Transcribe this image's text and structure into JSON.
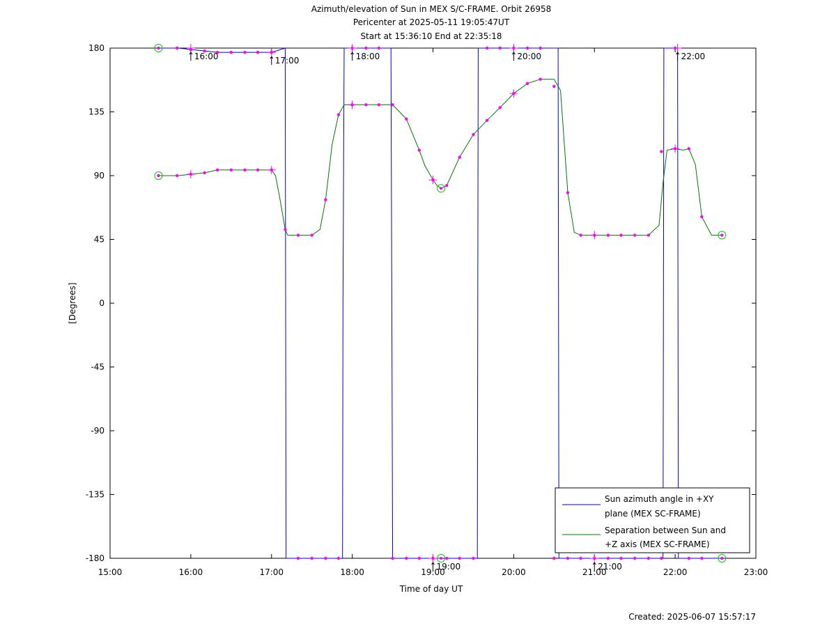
{
  "chart_data": {
    "type": "line",
    "title_lines": [
      "Azimuth/elevation of Sun in MEX S/C-FRAME.  Orbit 26958",
      "Pericenter at 2025-05-11 19:05:47UT",
      "Start at 15:36:10 End at 22:35:18"
    ],
    "xlabel": "Time of day UT",
    "ylabel": "[Degrees]",
    "xlim": [
      15,
      23
    ],
    "ylim": [
      -180,
      180
    ],
    "x_ticks": [
      15,
      16,
      17,
      18,
      19,
      20,
      21,
      22,
      23
    ],
    "x_tick_labels": [
      "15:00",
      "16:00",
      "17:00",
      "18:00",
      "19:00",
      "20:00",
      "21:00",
      "22:00",
      "23:00"
    ],
    "y_ticks": [
      180,
      135,
      90,
      45,
      0,
      -45,
      -90,
      -135,
      -180
    ],
    "y_tick_labels": [
      "180",
      "135",
      "90",
      "45",
      "0",
      "-45",
      "-90",
      "-135",
      "-180"
    ],
    "hour_annotations": [
      {
        "label": "16:00",
        "x": 16.0,
        "y": 180
      },
      {
        "label": "17:00",
        "x": 17.0,
        "y": 177
      },
      {
        "label": "18:00",
        "x": 18.0,
        "y": 180
      },
      {
        "label": "19:00",
        "x": 19.0,
        "y": -180
      },
      {
        "label": "20:00",
        "x": 20.0,
        "y": 180
      },
      {
        "label": "21:00",
        "x": 21.0,
        "y": -180
      },
      {
        "label": "22:00",
        "x": 22.03,
        "y": 180
      }
    ],
    "series": [
      {
        "name": "Sun azimuth angle in +XY plane (MEX SC-FRAME)",
        "color": "#0000cc",
        "x": [
          15.6,
          15.85,
          16.0,
          16.17,
          16.33,
          16.5,
          16.67,
          16.83,
          17.0,
          17.17,
          17.175,
          17.18,
          17.2,
          17.35,
          17.5,
          17.67,
          17.85,
          17.88,
          17.885,
          17.9,
          18.0,
          18.17,
          18.33,
          18.48,
          18.49,
          18.5,
          18.52,
          18.67,
          18.83,
          19.0,
          19.1,
          19.17,
          19.33,
          19.55,
          19.555,
          19.56,
          19.58,
          19.67,
          19.83,
          20.0,
          20.17,
          20.33,
          20.55,
          20.555,
          20.56,
          20.58,
          20.67,
          20.83,
          21.0,
          21.17,
          21.33,
          21.5,
          21.67,
          21.85,
          21.855,
          21.86,
          21.88,
          21.9,
          22.0,
          22.03,
          22.035,
          22.04,
          22.06,
          22.17,
          22.33,
          22.58
        ],
        "y": [
          180,
          180,
          179,
          178,
          177,
          177,
          177,
          177,
          177,
          180,
          0,
          -180,
          -180,
          -180,
          -180,
          -180,
          -180,
          -180,
          0,
          180,
          180,
          180,
          180,
          180,
          0,
          -180,
          -180,
          -180,
          -180,
          -180,
          -180,
          -180,
          -180,
          -180,
          0,
          180,
          180,
          180,
          180,
          180,
          180,
          180,
          180,
          0,
          -180,
          -180,
          -180,
          -180,
          -180,
          -180,
          -180,
          -180,
          -180,
          -180,
          0,
          180,
          180,
          180,
          180,
          180,
          0,
          -180,
          -180,
          -180,
          -180,
          -180
        ]
      },
      {
        "name": "Separation between Sun and +Z axis (MEX SC-FRAME)",
        "color": "#007700",
        "x": [
          15.6,
          15.85,
          16.0,
          16.17,
          16.33,
          16.5,
          16.67,
          16.83,
          17.0,
          17.05,
          17.1,
          17.17,
          17.2,
          17.35,
          17.5,
          17.6,
          17.67,
          17.75,
          17.83,
          17.9,
          18.0,
          18.17,
          18.33,
          18.5,
          18.67,
          18.83,
          18.9,
          19.0,
          19.05,
          19.1,
          19.17,
          19.33,
          19.5,
          19.67,
          19.83,
          20.0,
          20.17,
          20.33,
          20.5,
          20.58,
          20.67,
          20.75,
          20.83,
          21.0,
          21.17,
          21.33,
          21.5,
          21.67,
          21.8,
          21.85,
          21.9,
          22.0,
          22.1,
          22.17,
          22.25,
          22.33,
          22.45,
          22.58
        ],
        "y": [
          90,
          90,
          91,
          92,
          94,
          94,
          94,
          94,
          94,
          90,
          75,
          52,
          48,
          48,
          48,
          52,
          73,
          112,
          133,
          140,
          140,
          140,
          140,
          140,
          130,
          108,
          97,
          87,
          83,
          81,
          83,
          103,
          119,
          129,
          138,
          148,
          155,
          158,
          158,
          150,
          78,
          50,
          48,
          48,
          48,
          48,
          48,
          48,
          55,
          85,
          108,
          109,
          108,
          109,
          98,
          61,
          48,
          48
        ]
      }
    ],
    "markers": {
      "pink_dots_azimuth": {
        "x": [
          15.6,
          15.83,
          16.0,
          16.17,
          16.33,
          16.5,
          16.67,
          16.83,
          17.0,
          17.33,
          17.5,
          17.67,
          17.83,
          18.0,
          18.17,
          18.33,
          18.5,
          18.67,
          18.83,
          19.0,
          19.17,
          19.33,
          19.5,
          19.67,
          19.83,
          20.0,
          20.17,
          20.33,
          20.5,
          20.67,
          20.83,
          21.0,
          21.17,
          21.33,
          21.5,
          21.67,
          21.83,
          22.0,
          22.17,
          22.33,
          22.58
        ],
        "y": [
          180,
          180,
          179,
          178,
          177,
          177,
          177,
          177,
          177,
          -180,
          -180,
          -180,
          -180,
          180,
          180,
          180,
          -180,
          -180,
          -180,
          -180,
          -180,
          -180,
          -180,
          180,
          180,
          180,
          180,
          180,
          -180,
          -180,
          -180,
          -180,
          -180,
          -180,
          -180,
          -180,
          -180,
          180,
          -180,
          -180,
          -180
        ]
      },
      "pink_dots_separation": {
        "x": [
          15.6,
          15.83,
          16.0,
          16.17,
          16.33,
          16.5,
          16.67,
          16.83,
          17.0,
          17.17,
          17.33,
          17.5,
          17.67,
          17.83,
          18.0,
          18.17,
          18.33,
          18.5,
          18.67,
          18.83,
          19.0,
          19.17,
          19.33,
          19.5,
          19.67,
          19.83,
          20.0,
          20.17,
          20.33,
          20.5,
          20.67,
          20.83,
          21.0,
          21.17,
          21.33,
          21.5,
          21.67,
          21.83,
          22.0,
          22.17,
          22.33,
          22.58
        ],
        "y": [
          90,
          90,
          91,
          92,
          94,
          94,
          94,
          94,
          94,
          52,
          48,
          48,
          73,
          133,
          140,
          140,
          140,
          140,
          130,
          108,
          87,
          83,
          103,
          119,
          129,
          138,
          148,
          155,
          158,
          153,
          78,
          48,
          48,
          48,
          48,
          48,
          48,
          107,
          109,
          109,
          61,
          48
        ]
      },
      "plus_markers": [
        {
          "x": 16.0,
          "y": 180
        },
        {
          "x": 17.0,
          "y": 177
        },
        {
          "x": 18.0,
          "y": 180
        },
        {
          "x": 20.0,
          "y": 180
        },
        {
          "x": 22.03,
          "y": 180
        },
        {
          "x": 16.0,
          "y": 91
        },
        {
          "x": 17.0,
          "y": 94
        },
        {
          "x": 18.0,
          "y": 140
        },
        {
          "x": 19.0,
          "y": 87
        },
        {
          "x": 20.0,
          "y": 148
        },
        {
          "x": 21.0,
          "y": 48
        },
        {
          "x": 22.0,
          "y": 109
        },
        {
          "x": 19.0,
          "y": -180
        },
        {
          "x": 21.0,
          "y": -180
        }
      ],
      "green_circles": [
        {
          "x": 15.6,
          "y": 180
        },
        {
          "x": 15.6,
          "y": 90
        },
        {
          "x": 19.1,
          "y": 81
        },
        {
          "x": 19.1,
          "y": -180
        },
        {
          "x": 22.58,
          "y": 48
        },
        {
          "x": 22.58,
          "y": -180
        }
      ]
    },
    "legend": {
      "placement": "bottom-right",
      "entries": [
        {
          "line1": "Sun azimuth angle in +XY",
          "line2": "plane (MEX SC-FRAME)",
          "color": "#0000cc"
        },
        {
          "line1": "Separation between Sun and",
          "line2": "+Z axis (MEX SC-FRAME)",
          "color": "#007700"
        }
      ]
    },
    "grid": false
  },
  "footer": {
    "created": "Created: 2025-06-07 15:57:17"
  }
}
